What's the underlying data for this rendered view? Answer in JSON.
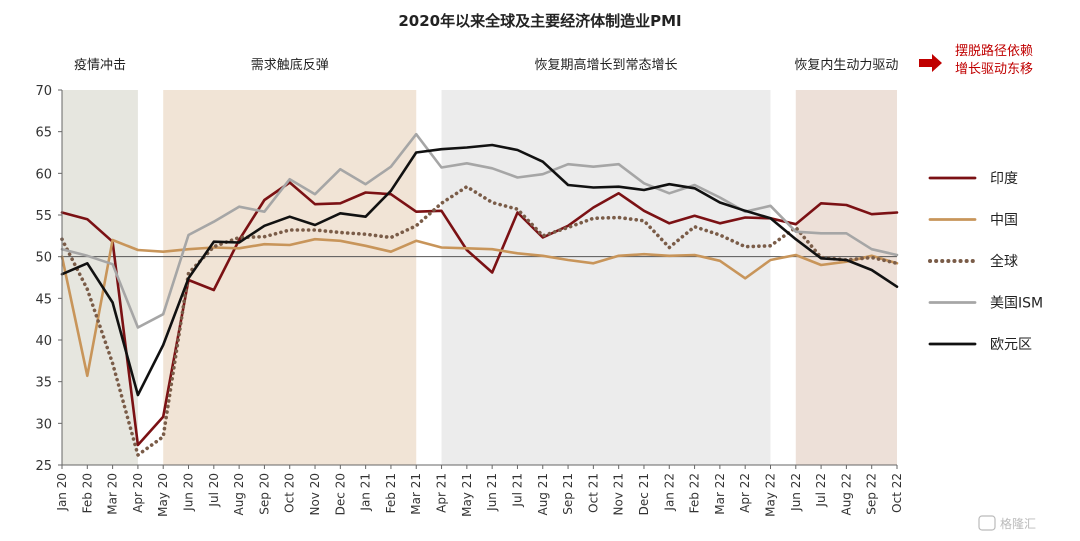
{
  "chart_data": {
    "type": "line",
    "title": "2020年以来全球及主要经济体制造业PMI",
    "ylim": [
      25,
      70
    ],
    "yticks": [
      25,
      30,
      35,
      40,
      45,
      50,
      55,
      60,
      65,
      70
    ],
    "reference_line": 50,
    "x": [
      "Jan 20",
      "Feb 20",
      "Mar 20",
      "Apr 20",
      "May 20",
      "Jun 20",
      "Jul 20",
      "Aug 20",
      "Sep 20",
      "Oct 20",
      "Nov 20",
      "Dec 20",
      "Jan 21",
      "Feb 21",
      "Mar 21",
      "Apr 21",
      "May 21",
      "Jun 21",
      "Jul 21",
      "Aug 21",
      "Sep 21",
      "Oct 21",
      "Nov 21",
      "Dec 21",
      "Jan 22",
      "Feb 22",
      "Mar 22",
      "Apr 22",
      "May 22",
      "Jun 22",
      "Jul 22",
      "Aug 22",
      "Sep 22",
      "Oct 22"
    ],
    "phases": [
      {
        "label": "疫情冲击",
        "start": 0,
        "end": 3,
        "color": "#e6e6df"
      },
      {
        "label": "需求触底反弹",
        "start": 4,
        "end": 14,
        "color": "#f1e4d6"
      },
      {
        "label": "恢复期高增长到常态增长",
        "start": 15,
        "end": 28,
        "color": "#ececec"
      },
      {
        "label": "恢复内生动力驱动",
        "start": 29,
        "end": 33,
        "color": "#ede0d8"
      }
    ],
    "callout": [
      "摆脱路径依赖",
      "增长驱动东移"
    ],
    "series": [
      {
        "name": "印度",
        "color": "#7b1114",
        "style": "solid",
        "values": [
          55.3,
          54.5,
          51.8,
          27.4,
          30.8,
          47.2,
          46.0,
          52.0,
          56.8,
          58.9,
          56.3,
          56.4,
          57.7,
          57.5,
          55.4,
          55.5,
          50.8,
          48.1,
          55.3,
          52.3,
          53.7,
          55.9,
          57.6,
          55.5,
          54.0,
          54.9,
          54.0,
          54.7,
          54.6,
          53.9,
          56.4,
          56.2,
          55.1,
          55.3
        ]
      },
      {
        "name": "中国",
        "color": "#c8955a",
        "style": "solid",
        "values": [
          50.0,
          35.7,
          52.0,
          50.8,
          50.6,
          50.9,
          51.1,
          51.0,
          51.5,
          51.4,
          52.1,
          51.9,
          51.3,
          50.6,
          51.9,
          51.1,
          51.0,
          50.9,
          50.4,
          50.1,
          49.6,
          49.2,
          50.1,
          50.3,
          50.1,
          50.2,
          49.5,
          47.4,
          49.6,
          50.2,
          49.0,
          49.4,
          50.1,
          49.2
        ]
      },
      {
        "name": "全球",
        "color": "#7a5c48",
        "style": "dotted",
        "values": [
          52.1,
          46.1,
          37.2,
          26.2,
          28.4,
          48.0,
          51.2,
          52.3,
          52.4,
          53.2,
          53.2,
          52.9,
          52.7,
          52.3,
          53.7,
          56.4,
          58.4,
          56.5,
          55.7,
          52.5,
          53.5,
          54.6,
          54.7,
          54.3,
          51.1,
          53.6,
          52.6,
          51.2,
          51.3,
          53.5,
          49.9,
          49.6,
          49.9,
          49.2
        ]
      },
      {
        "name": "美国ISM",
        "color": "#a6a6a6",
        "style": "solid",
        "values": [
          50.9,
          50.1,
          49.1,
          41.5,
          43.1,
          52.6,
          54.2,
          56.0,
          55.4,
          59.3,
          57.5,
          60.5,
          58.7,
          60.8,
          64.7,
          60.7,
          61.2,
          60.6,
          59.5,
          59.9,
          61.1,
          60.8,
          61.1,
          58.8,
          57.6,
          58.6,
          57.1,
          55.4,
          56.1,
          53.0,
          52.8,
          52.8,
          50.9,
          50.2
        ]
      },
      {
        "name": "欧元区",
        "color": "#111111",
        "style": "solid",
        "values": [
          47.9,
          49.2,
          44.5,
          33.4,
          39.4,
          47.4,
          51.8,
          51.7,
          53.7,
          54.8,
          53.8,
          55.2,
          54.8,
          57.9,
          62.5,
          62.9,
          63.1,
          63.4,
          62.8,
          61.4,
          58.6,
          58.3,
          58.4,
          58.0,
          58.7,
          58.2,
          56.5,
          55.5,
          54.6,
          52.1,
          49.8,
          49.6,
          48.4,
          46.4
        ]
      }
    ]
  },
  "watermark": "格隆汇"
}
